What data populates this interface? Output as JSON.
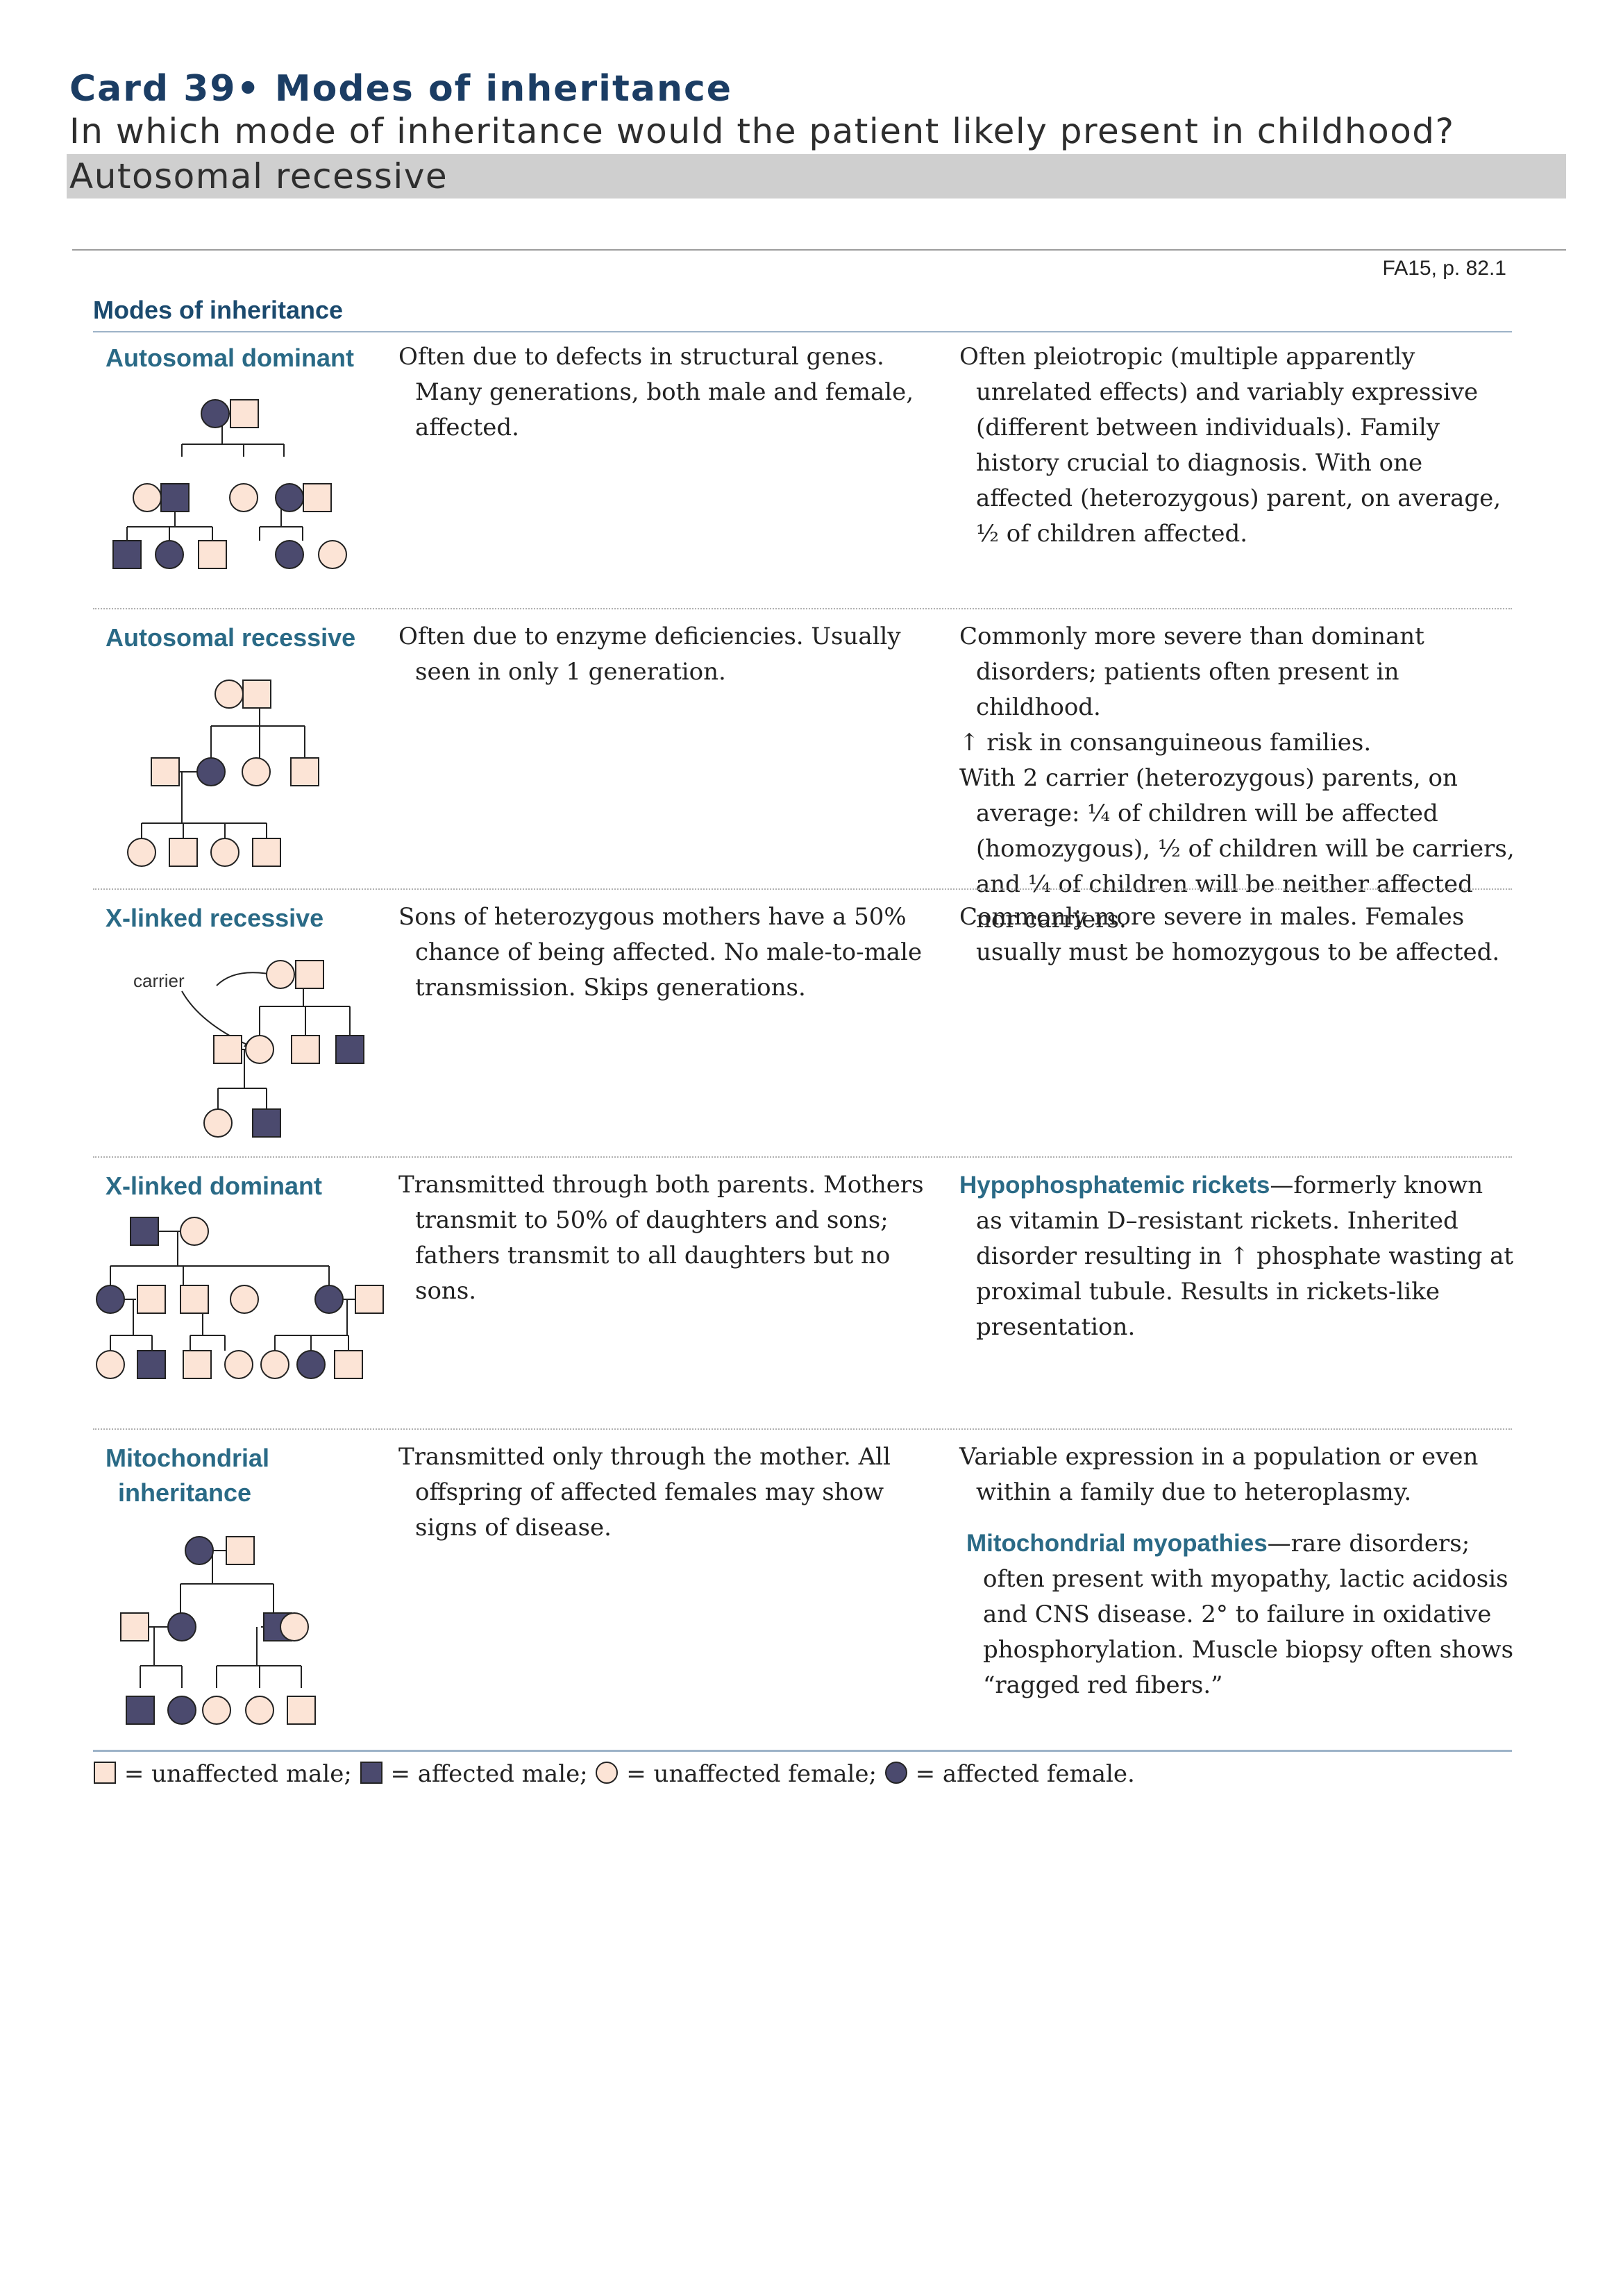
{
  "card": {
    "title": "Card 39• Modes of inheritance",
    "question": "In which mode of inheritance would the patient likely present in childhood?",
    "answer": "Autosomal recessive"
  },
  "reference": "FA15, p. 82.1",
  "section_title": "Modes of inheritance",
  "rows": [
    {
      "mode": "Autosomal dominant",
      "description": "Often due to defects in structural genes. Many generations, both male and female, affected.",
      "notes": [
        "Often pleiotropic (multiple apparently unrelated effects) and variably expressive (different between individuals). Family history crucial to diagnosis. With one affected (heterozygous) parent, on average, ½ of children affected."
      ]
    },
    {
      "mode": "Autosomal recessive",
      "description": "Often due to enzyme deficiencies. Usually seen in only 1 generation.",
      "notes": [
        "Commonly more severe than dominant disorders; patients often present in childhood.",
        "↑ risk in consanguineous families.",
        "With 2 carrier (heterozygous) parents, on average: ¼ of children will be affected (homozygous), ½ of children will be carriers, and ¼ of children will be neither affected nor carriers."
      ]
    },
    {
      "mode": "X-linked recessive",
      "pedigree_label": "carrier",
      "description": "Sons of heterozygous mothers have a 50% chance of being affected. No male-to-male transmission. Skips generations.",
      "notes": [
        "Commonly more severe in males. Females usually must be homozygous to be affected."
      ]
    },
    {
      "mode": "X-linked dominant",
      "description": "Transmitted through both parents. Mothers transmit to 50% of daughters and sons; fathers transmit to all daughters but no sons.",
      "term": "Hypophosphatemic rickets",
      "term_text": "—formerly known as vitamin D–resistant rickets. Inherited disorder resulting in ↑ phosphate wasting at proximal tubule. Results in rickets-like presentation."
    },
    {
      "mode_line1": "Mitochondrial",
      "mode_line2": "inheritance",
      "description": "Transmitted only through the mother. All offspring of affected females may show signs of disease.",
      "notes": [
        "Variable expression in a population or even within a family due to heteroplasmy."
      ],
      "term": "Mitochondrial myopathies",
      "term_text": "—rare disorders; often present with myopathy, lactic acidosis and CNS disease. 2° to failure in oxidative phosphorylation. Muscle biopsy often shows “ragged red fibers.”"
    }
  ],
  "legend": {
    "unaffected_male": "= unaffected male;",
    "affected_male": "= affected male;",
    "unaffected_female": "= unaffected female;",
    "affected_female": "= affected female."
  },
  "colors": {
    "unaffected": "#fce4d6",
    "affected": "#4b4a6e",
    "title": "#1b3d64",
    "accent": "#2a6a86"
  }
}
